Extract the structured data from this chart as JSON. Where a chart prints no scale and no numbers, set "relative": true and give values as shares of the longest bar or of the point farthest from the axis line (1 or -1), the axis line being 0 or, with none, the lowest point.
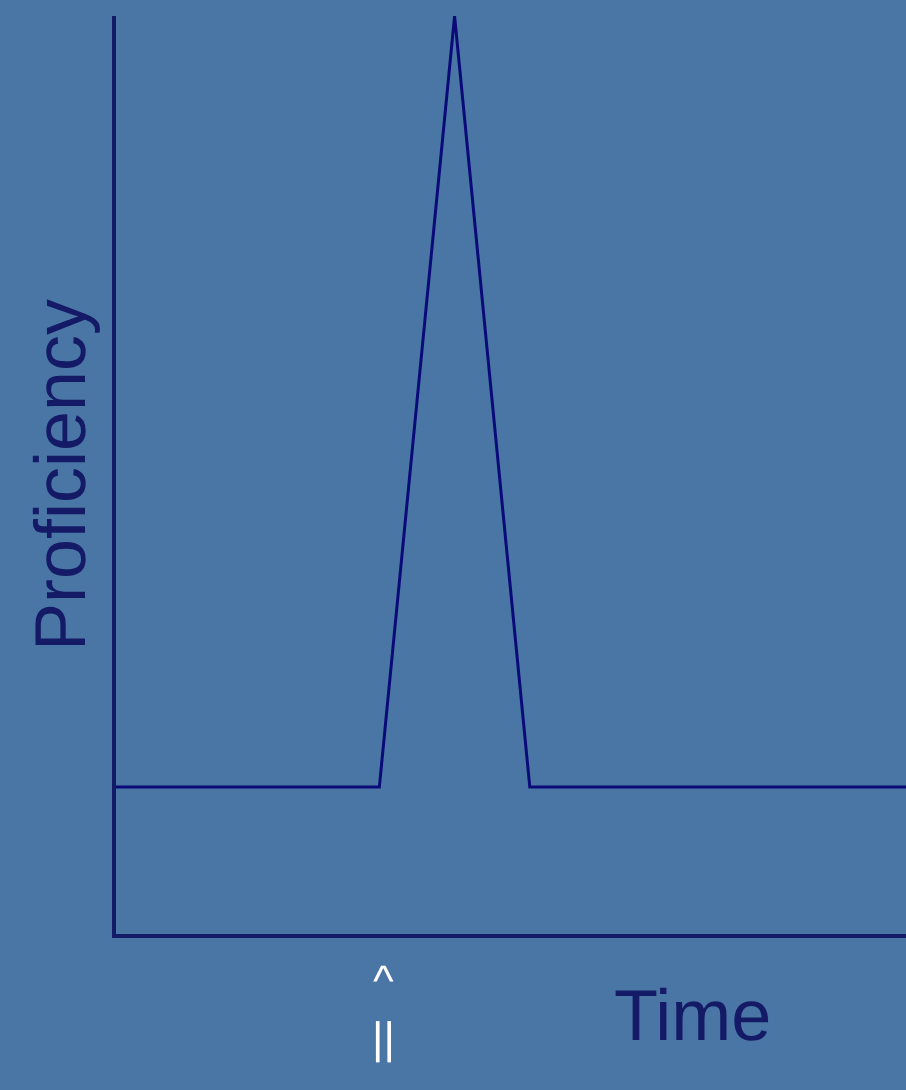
{
  "chart_data": {
    "type": "line",
    "relative": true,
    "xlabel": "Time",
    "ylabel": "Proficiency",
    "categories": [
      null,
      null,
      null,
      null,
      null,
      null,
      null,
      null,
      null,
      null,
      null,
      null,
      null,
      null,
      null,
      null,
      null,
      null,
      null,
      null,
      null,
      null
    ],
    "series": [
      {
        "color": "#0a0a78",
        "values": [
          0.16,
          0.16,
          0.16,
          0.16,
          0.16,
          0.16,
          0.16,
          0.16,
          0.58,
          1,
          0.58,
          0.16,
          0.16,
          0.16,
          0.16,
          0.16,
          0.16,
          0.16,
          0.16,
          0.16,
          0.16,
          0.16
        ]
      }
    ],
    "annotations": [
      "^\n||"
    ],
    "marker": "none",
    "line_style": "solid"
  }
}
